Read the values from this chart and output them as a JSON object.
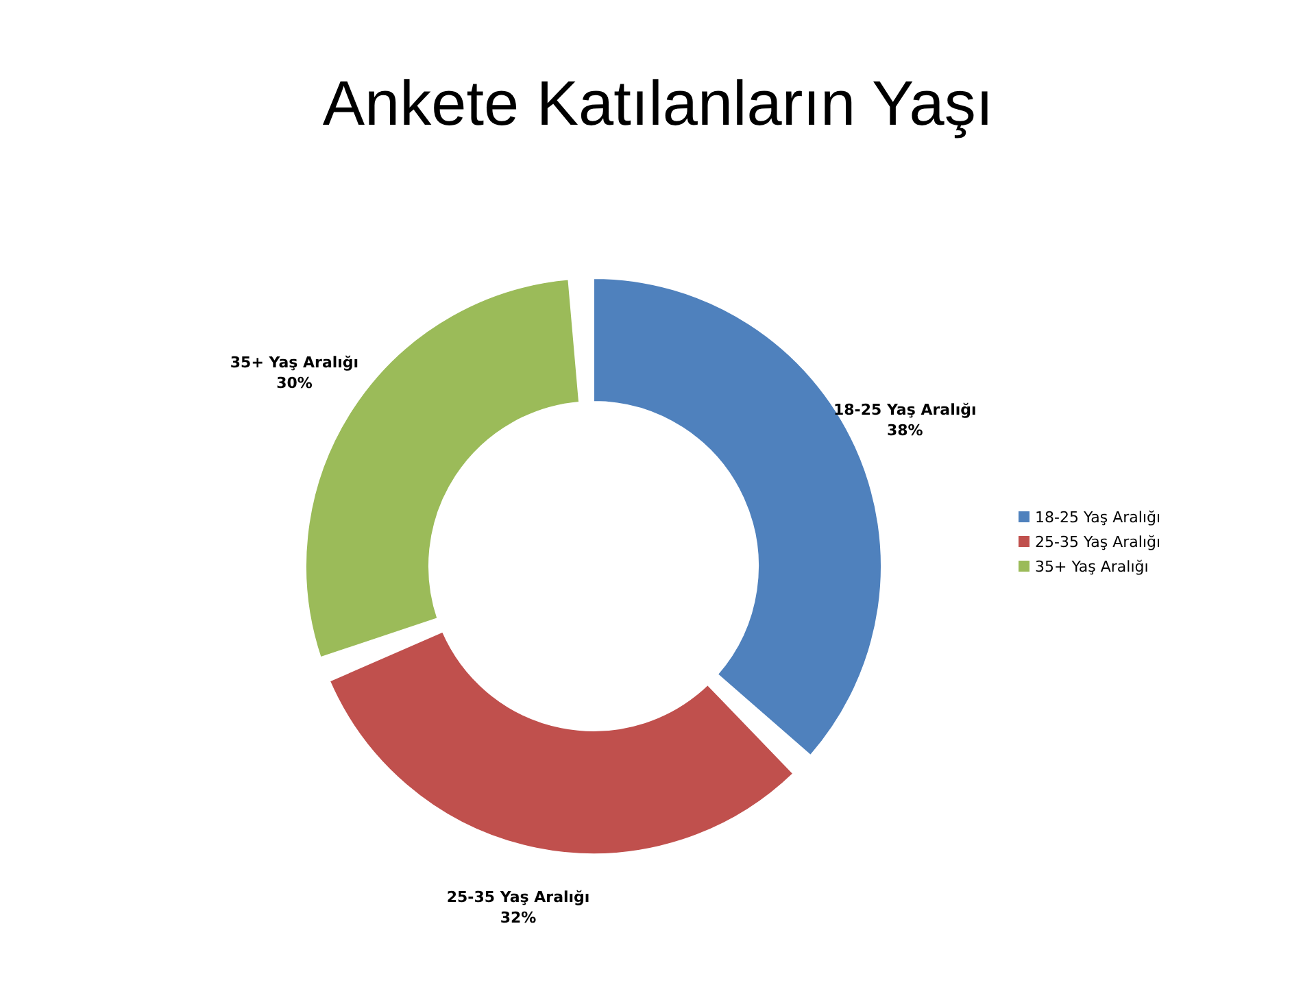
{
  "chart_data": {
    "type": "donut",
    "title": "Ankete Katılanların Yaşı",
    "categories": [
      "18-25 Yaş Aralığı",
      "25-35 Yaş Aralığı",
      "35+ Yaş Aralığı"
    ],
    "values": [
      38,
      32,
      30
    ],
    "value_labels": [
      "38%",
      "32%",
      "30%"
    ],
    "colors": [
      "#4f81bd",
      "#c0504d",
      "#9bbb59"
    ],
    "legend": "right"
  }
}
